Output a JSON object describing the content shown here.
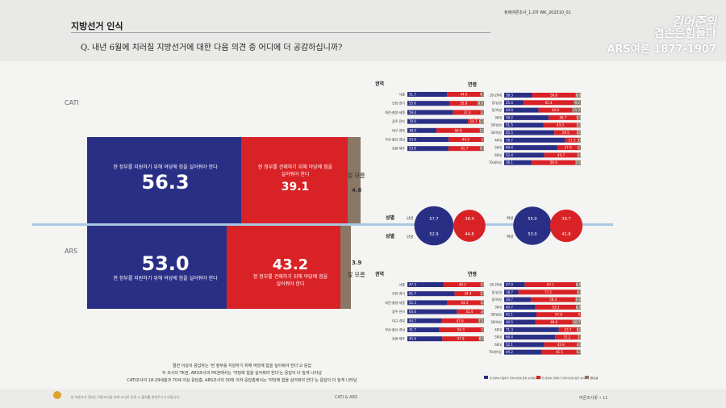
{
  "header": {
    "section_title": "지방선거 인식",
    "question": "Q. 내년 6월에 치러질 지방선거에 대한 다음 의견 중 어디에 더 공감하십니까?",
    "meta": "정례여론조사_1·2차  WK_202510_01",
    "brand_line1": "김어준의",
    "brand_line2": "겸손은힘들다",
    "brand_line3": "ARS여론 1877-1907"
  },
  "main": {
    "cati_label": "CATI",
    "ars_label": "ARS",
    "support_text": "현 정부를 지원하기 위해 여당에 힘을 실어줘야 한다",
    "check_text": "현 정부를 견제하기 위해 야당에 힘을 실어줘야 한다",
    "unknown_text": "잘 모름",
    "cati": {
      "support": "56.3",
      "check": "39.1",
      "unknown": "4.6"
    },
    "ars": {
      "support": "53.0",
      "check": "43.2",
      "unknown": "3.9"
    }
  },
  "colors": {
    "support": "#2a2f86",
    "check": "#d92226",
    "unknown": "#8b7765"
  },
  "chart_data": [
    {
      "type": "bar",
      "title": "CATI",
      "categories": [
        "CATI"
      ],
      "series": [
        {
          "name": "현 정부를 지원하기 위해 여당에 힘을 실어줘야 한다",
          "values": [
            56.3
          ]
        },
        {
          "name": "현 정부를 견제하기 위해 야당에 힘을 실어줘야 한다",
          "values": [
            39.1
          ]
        },
        {
          "name": "잘 모름",
          "values": [
            4.6
          ]
        }
      ]
    },
    {
      "type": "bar",
      "title": "ARS",
      "categories": [
        "ARS"
      ],
      "series": [
        {
          "name": "현 정부를 지원하기 위해 여당에 힘을 실어줘야 한다",
          "values": [
            53.0
          ]
        },
        {
          "name": "현 정부를 견제하기 위해 야당에 힘을 실어줘야 한다",
          "values": [
            43.2
          ]
        },
        {
          "name": "잘 모름",
          "values": [
            3.9
          ]
        }
      ]
    },
    {
      "type": "bar",
      "title": "권역",
      "categories": [
        "서울",
        "인천·경기",
        "대전·충청·세종",
        "광주·전라",
        "대구·경북",
        "부산·울산·경남",
        "강원·제주"
      ],
      "series": [
        {
          "values": [
            51.7,
            55.6,
            59.4,
            79.0,
            38.0,
            53.9,
            53.6
          ]
        },
        {
          "values": [
            44.0,
            35.8,
            37.3,
            14.7,
            56.9,
            44.3,
            41.7
          ]
        },
        {
          "values": [
            4.3,
            8.6,
            3.3,
            6.3,
            5.2,
            1.8,
            4.7
          ]
        }
      ]
    },
    {
      "type": "bar",
      "title": "연령",
      "categories": [
        "18-29세",
        "동/남성",
        "동/여성",
        "30대",
        "30/남성",
        "30/여성",
        "40대",
        "50대",
        "60대",
        "70세이상"
      ],
      "series": [
        {
          "values": [
            36.3,
            25.4,
            44.8,
            58.2,
            51.5,
            65.5,
            79.7,
            69.4,
            52.4,
            36.1
          ]
        },
        {
          "values": [
            56.8,
            65.4,
            44.0,
            36.7,
            43.3,
            29.5,
            17.3,
            27.9,
            43.7,
            56.9
          ]
        },
        {
          "values": [
            6.8,
            9.2,
            11.2,
            5.1,
            5.2,
            5.0,
            3.0,
            2.7,
            3.9,
            7.0
          ]
        }
      ]
    },
    {
      "type": "bar",
      "title": "성별",
      "categories": [
        "남성",
        "여성"
      ],
      "series": [
        {
          "name": "CATI",
          "values": [
            57.7,
            55.0
          ]
        },
        {
          "name": "CATI",
          "values": [
            38.4,
            39.7
          ]
        },
        {
          "name": "ARS",
          "values": [
            52.9,
            53.0
          ]
        },
        {
          "name": "ARS",
          "values": [
            44.8,
            41.8
          ]
        }
      ]
    },
    {
      "type": "bar",
      "title": "권역",
      "categories": [
        "서울",
        "인천·경기",
        "대전·충청·세종",
        "광주·전라",
        "대구·경북",
        "부산·울산·경남",
        "강원·제주"
      ],
      "series": [
        {
          "values": [
            47.3,
            61.7,
            52.3,
            64.6,
            44.7,
            41.7,
            45.6
          ]
        },
        {
          "values": [
            49.2,
            34.4,
            44.3,
            32.4,
            47.6,
            56.3,
            47.9
          ]
        },
        {
          "values": [
            3.5,
            3.9,
            3.4,
            3.0,
            7.5,
            2.0,
            6.5
          ]
        }
      ]
    },
    {
      "type": "bar",
      "title": "연령",
      "categories": [
        "18-29세",
        "동/남성",
        "동/여성",
        "30대",
        "30/남성",
        "30/여성",
        "40대",
        "50대",
        "60대",
        "70세이상"
      ],
      "series": [
        {
          "values": [
            27.0,
            18.7,
            34.7,
            40.7,
            42.1,
            40.5,
            71.3,
            66.4,
            52.1,
            49.2
          ]
        },
        {
          "values": [
            67.1,
            77.2,
            58.4,
            53.3,
            57.8,
            48.8,
            23.7,
            31.2,
            43.9,
            45.5
          ]
        },
        {
          "values": [
            6.0,
            4.1,
            6.9,
            6.0,
            0.1,
            10.7,
            5.0,
            2.4,
            4.0,
            5.3
          ]
        }
      ]
    }
  ],
  "note_lines": [
    "절반 이상의 응답자는 '현 정부를 지원하기 위해 여당에 힘을 실어줘야 한다'고 응답",
    "두 조사의 TK권, ARS조사의 PK권에서는 '야당에 힘을 실어줘야 한다'는 응답이 더 높게 나타남",
    "CATI조사의 18-29세층과 70세 이상 응답층, ARS조사의 30대 이하 응답층에서는 '야당에 힘을 실어줘야 한다'는 응답이 더 높게 나타남"
  ],
  "legend": {
    "support": "현 정부를 지원하기 위해 여당에 힘을 실어줘야 한다",
    "check": "현 정부를 견제하기 위해 야당에 힘을 실어줘야 한다",
    "unknown": "잘 모름"
  },
  "footer": {
    "center": "CATI & ARS",
    "right": "여론조사꽃 • 11",
    "left": "본 여론조사 결과는 여론조사꽃 자체 조사로 인용 시 출처를 밝혀주시기 바랍니다"
  }
}
